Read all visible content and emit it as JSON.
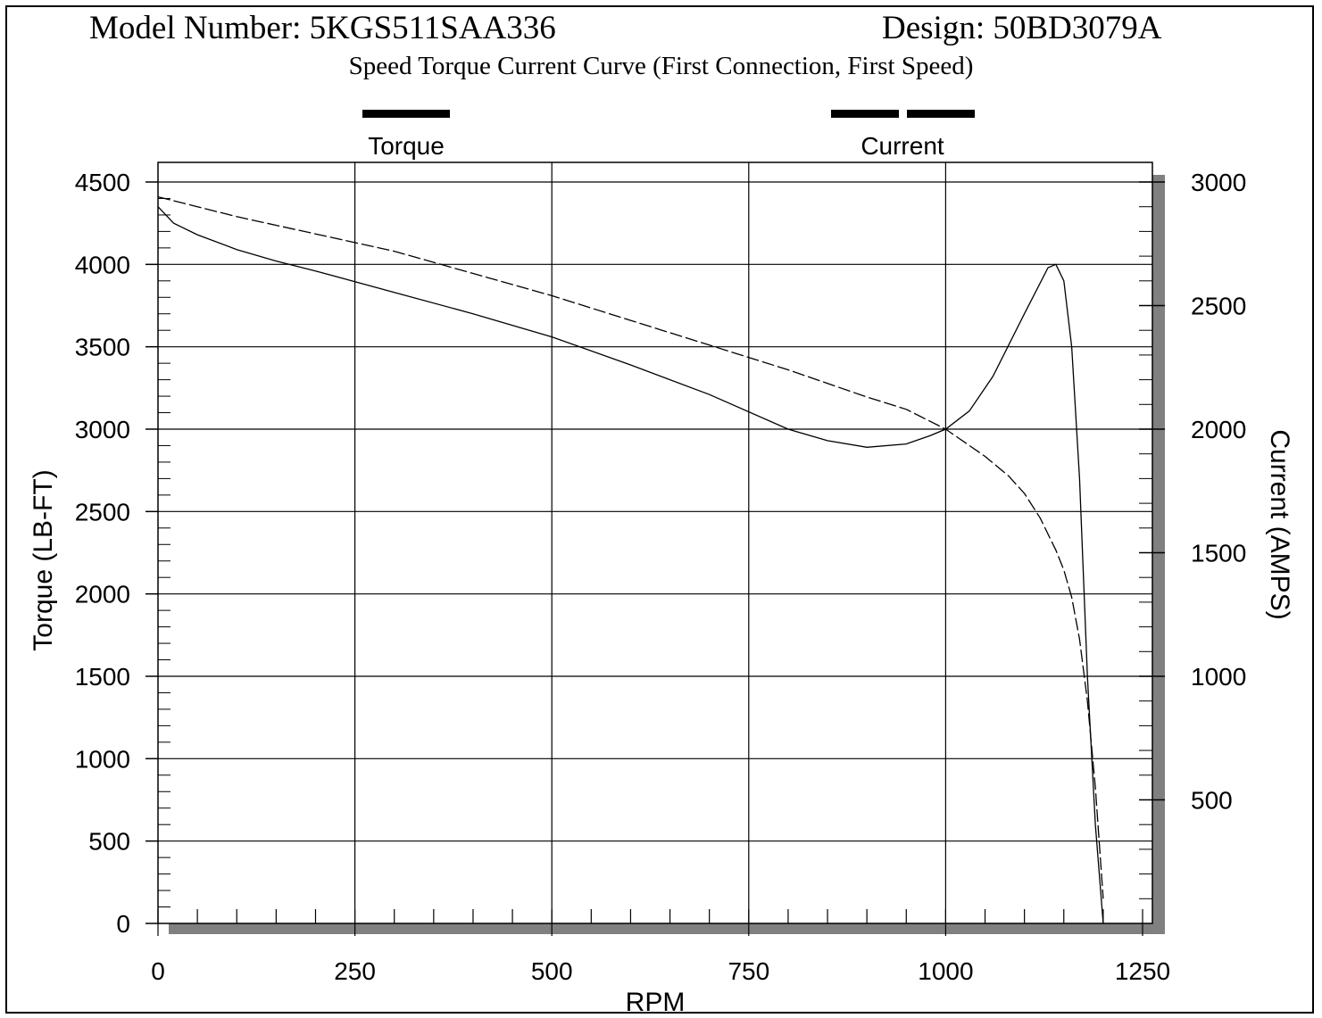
{
  "header": {
    "model_number": "Model Number: 5KGS511SAA336",
    "design": "Design: 50BD3079A",
    "subtitle": "Speed Torque Current Curve (First Connection, First Speed)"
  },
  "legend": {
    "torque_label": "Torque",
    "current_label": "Current"
  },
  "chart_data": {
    "type": "line",
    "title": "Speed Torque Current Curve (First Connection, First Speed)",
    "xlabel": "RPM",
    "ylabel": "Torque (LB-FT)",
    "y2label": "Current (AMPS)",
    "xlim": [
      0,
      1250
    ],
    "ylim": [
      0,
      4500
    ],
    "y2lim": [
      0,
      3000
    ],
    "xticks": [
      "0",
      "250",
      "500",
      "750",
      "1000",
      "1250"
    ],
    "yticks": [
      "0",
      "500",
      "1000",
      "1500",
      "2000",
      "2500",
      "3000",
      "3500",
      "4000",
      "4500"
    ],
    "y2ticks": [
      "500",
      "1000",
      "1500",
      "2000",
      "2500",
      "3000"
    ],
    "grid": true,
    "legend_position": "top",
    "series": [
      {
        "name": "Torque",
        "axis": "left",
        "style": "solid",
        "x": [
          0,
          20,
          50,
          100,
          150,
          200,
          300,
          400,
          500,
          600,
          700,
          800,
          850,
          900,
          950,
          980,
          1000,
          1030,
          1060,
          1100,
          1130,
          1140,
          1150,
          1160,
          1170,
          1180,
          1190,
          1200
        ],
        "y": [
          4350,
          4250,
          4180,
          4090,
          4020,
          3960,
          3830,
          3700,
          3560,
          3390,
          3210,
          3000,
          2930,
          2890,
          2910,
          2960,
          3000,
          3110,
          3320,
          3700,
          3980,
          4000,
          3900,
          3500,
          2700,
          1500,
          600,
          0
        ]
      },
      {
        "name": "Current",
        "axis": "right",
        "style": "dashed",
        "x": [
          0,
          50,
          100,
          200,
          300,
          400,
          500,
          600,
          700,
          800,
          900,
          950,
          1000,
          1050,
          1080,
          1100,
          1120,
          1140,
          1150,
          1160,
          1170,
          1180,
          1190,
          1200
        ],
        "y": [
          2940,
          2900,
          2860,
          2790,
          2720,
          2630,
          2540,
          2440,
          2340,
          2240,
          2130,
          2080,
          2000,
          1890,
          1810,
          1740,
          1640,
          1510,
          1430,
          1320,
          1150,
          900,
          550,
          100
        ]
      }
    ]
  }
}
